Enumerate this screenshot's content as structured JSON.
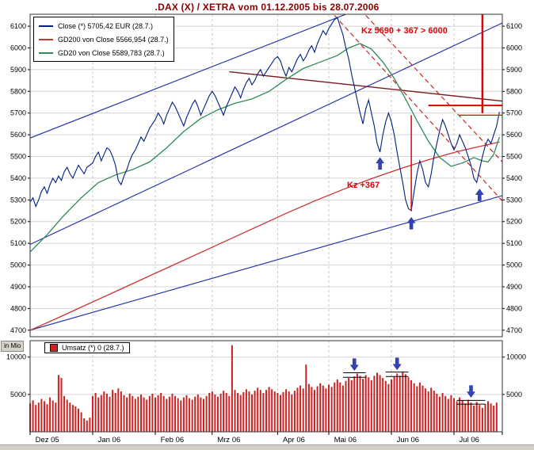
{
  "title": ".DAX (X) / XETRA vom 01.12.2005 bis 28.07.2006",
  "legend": {
    "items": [
      {
        "name": "close",
        "label": "Close (*) 5705,42 EUR (28.7.)",
        "color": "#002080"
      },
      {
        "name": "gd200",
        "label": "GD200 von Close 5566,954 (28.7.)",
        "color": "#cc3333"
      },
      {
        "name": "gd20",
        "label": "GD20 von Close 5589,783 (28.7.)",
        "color": "#2e8b57"
      }
    ]
  },
  "volume_legend": {
    "label": "Umsatz (*) 0 (28.7.)",
    "color": "#cc2222"
  },
  "in_mio_label": "in Mio",
  "annotations": {
    "target": "Kz 5690 + 367 > 6000",
    "measure": "Kz +367"
  },
  "chart_data": {
    "type": "line",
    "title": ".DAX (X) / XETRA vom 01.12.2005 bis 28.07.2006",
    "x_unit": "trading day index from 01.12.2005 to 28.07.2006",
    "x_range": [
      0,
      166
    ],
    "y_range": [
      4670,
      6155
    ],
    "y_ticks": [
      4700,
      4800,
      4900,
      5000,
      5100,
      5200,
      5300,
      5400,
      5500,
      5600,
      5700,
      5800,
      5900,
      6000,
      6100
    ],
    "grid": true,
    "months": [
      {
        "label": "Dez 05",
        "day": 1
      },
      {
        "label": "Jan 06",
        "day": 23
      },
      {
        "label": "Feb 06",
        "day": 45
      },
      {
        "label": "Mrz 06",
        "day": 65
      },
      {
        "label": "Apr 06",
        "day": 88
      },
      {
        "label": "Mai 06",
        "day": 106
      },
      {
        "label": "Jun 06",
        "day": 128
      },
      {
        "label": "Jul 06",
        "day": 150
      }
    ],
    "month_boundaries": [
      22,
      44,
      64,
      87,
      105,
      127,
      149
    ],
    "series": [
      {
        "name": "Close",
        "color": "#002080",
        "last_value": 5705.42,
        "values": [
          5290,
          5310,
          5270,
          5300,
          5340,
          5360,
          5330,
          5370,
          5400,
          5380,
          5410,
          5390,
          5430,
          5450,
          5420,
          5400,
          5430,
          5460,
          5440,
          5420,
          5450,
          5460,
          5470,
          5500,
          5520,
          5480,
          5510,
          5540,
          5530,
          5500,
          5460,
          5390,
          5370,
          5410,
          5440,
          5480,
          5510,
          5530,
          5560,
          5590,
          5570,
          5600,
          5630,
          5650,
          5670,
          5700,
          5680,
          5650,
          5690,
          5720,
          5750,
          5730,
          5700,
          5670,
          5640,
          5680,
          5710,
          5740,
          5760,
          5730,
          5690,
          5720,
          5750,
          5780,
          5800,
          5780,
          5750,
          5720,
          5690,
          5730,
          5760,
          5790,
          5820,
          5800,
          5770,
          5810,
          5840,
          5860,
          5830,
          5850,
          5880,
          5900,
          5870,
          5890,
          5910,
          5930,
          5950,
          5960,
          5940,
          5900,
          5870,
          5910,
          5890,
          5920,
          5950,
          5970,
          5940,
          5960,
          5990,
          6010,
          5980,
          6020,
          6050,
          6080,
          6060,
          6090,
          6110,
          6130,
          6140,
          6100,
          6060,
          6000,
          5950,
          5880,
          5820,
          5760,
          5700,
          5650,
          5720,
          5760,
          5700,
          5640,
          5560,
          5520,
          5600,
          5660,
          5700,
          5660,
          5600,
          5520,
          5450,
          5380,
          5300,
          5260,
          5250,
          5340,
          5420,
          5480,
          5440,
          5380,
          5360,
          5420,
          5500,
          5560,
          5620,
          5670,
          5640,
          5600,
          5560,
          5530,
          5560,
          5600,
          5570,
          5540,
          5500,
          5460,
          5400,
          5380,
          5440,
          5500,
          5550,
          5580,
          5560,
          5600,
          5640,
          5705.42
        ]
      },
      {
        "name": "GD200 von Close",
        "color": "#cc3333",
        "last_value": 5566.954,
        "points": [
          [
            0,
            4700
          ],
          [
            10,
            4758
          ],
          [
            20,
            4818
          ],
          [
            30,
            4878
          ],
          [
            40,
            4938
          ],
          [
            50,
            4998
          ],
          [
            60,
            5058
          ],
          [
            70,
            5118
          ],
          [
            80,
            5178
          ],
          [
            90,
            5238
          ],
          [
            100,
            5295
          ],
          [
            110,
            5348
          ],
          [
            120,
            5398
          ],
          [
            130,
            5443
          ],
          [
            140,
            5485
          ],
          [
            150,
            5522
          ],
          [
            158,
            5546
          ],
          [
            165,
            5567
          ]
        ]
      },
      {
        "name": "GD20 von Close",
        "color": "#2e8b57",
        "last_value": 5589.783,
        "points": [
          [
            0,
            5060
          ],
          [
            6,
            5140
          ],
          [
            12,
            5230
          ],
          [
            18,
            5310
          ],
          [
            24,
            5380
          ],
          [
            30,
            5415
          ],
          [
            36,
            5440
          ],
          [
            42,
            5475
          ],
          [
            48,
            5540
          ],
          [
            54,
            5615
          ],
          [
            60,
            5675
          ],
          [
            66,
            5715
          ],
          [
            72,
            5745
          ],
          [
            78,
            5765
          ],
          [
            84,
            5800
          ],
          [
            90,
            5855
          ],
          [
            96,
            5905
          ],
          [
            102,
            5935
          ],
          [
            108,
            5965
          ],
          [
            112,
            6000
          ],
          [
            116,
            6020
          ],
          [
            120,
            5995
          ],
          [
            124,
            5935
          ],
          [
            128,
            5860
          ],
          [
            132,
            5765
          ],
          [
            136,
            5665
          ],
          [
            140,
            5570
          ],
          [
            144,
            5495
          ],
          [
            148,
            5455
          ],
          [
            152,
            5470
          ],
          [
            156,
            5495
          ],
          [
            159,
            5480
          ],
          [
            161,
            5475
          ],
          [
            163,
            5510
          ],
          [
            165,
            5590
          ]
        ]
      }
    ],
    "trendlines": [
      {
        "name": "support-uptrend",
        "points": [
          [
            0,
            4700
          ],
          [
            166,
            5320
          ]
        ],
        "color": "#2838aa",
        "width": 1.2
      },
      {
        "name": "channel-uptrend",
        "points": [
          [
            0,
            5095
          ],
          [
            166,
            6115
          ]
        ],
        "color": "#2838aa",
        "width": 1.2
      },
      {
        "name": "steep-uptrend",
        "points": [
          [
            0,
            5585
          ],
          [
            112,
            6160
          ]
        ],
        "color": "#2838aa",
        "width": 1.2
      },
      {
        "name": "resistance-maroon",
        "points": [
          [
            70,
            5890
          ],
          [
            166,
            5755
          ]
        ],
        "color": "#7a1a1a",
        "width": 1.4
      },
      {
        "name": "downtrend-dashed-1",
        "points": [
          [
            107,
            6150
          ],
          [
            166,
            5295
          ]
        ],
        "color": "#cc2222",
        "width": 1.2,
        "dash": "6,4"
      },
      {
        "name": "downtrend-dashed-2",
        "points": [
          [
            118,
            6150
          ],
          [
            166,
            5475
          ]
        ],
        "color": "#cc2222",
        "width": 1.2,
        "dash": "6,4"
      }
    ],
    "annotation_lines": [
      {
        "name": "measure-vline",
        "points": [
          [
            134,
            5250
          ],
          [
            134,
            5690
          ]
        ],
        "color": "#e60000",
        "width": 1.5
      },
      {
        "name": "target-vline",
        "points": [
          [
            159,
            5700
          ],
          [
            159,
            6155
          ]
        ],
        "color": "#e60000",
        "width": 2.5
      },
      {
        "name": "target-hline-5735",
        "points": [
          [
            140,
            5735
          ],
          [
            166,
            5735
          ]
        ],
        "color": "#e60000",
        "width": 2
      },
      {
        "name": "target-hline-5690",
        "points": [
          [
            151,
            5690
          ],
          [
            166,
            5690
          ]
        ],
        "color": "#e60000",
        "width": 1.2
      }
    ],
    "arrows_price": [
      {
        "day": 123,
        "value": 5495,
        "dir": "up"
      },
      {
        "day": 134,
        "value": 5220,
        "dir": "up"
      },
      {
        "day": 158,
        "value": 5350,
        "dir": "up"
      }
    ],
    "arrow_color": "#3344bb",
    "volume": {
      "name": "Umsatz",
      "unit": "Mio",
      "color": "#cc2222",
      "y_range": [
        0,
        12200
      ],
      "y_ticks": [
        5000,
        10000
      ],
      "values": [
        3800,
        4200,
        3600,
        3900,
        4400,
        4100,
        3700,
        4600,
        4200,
        3900,
        7600,
        7200,
        4800,
        4300,
        3900,
        3600,
        3400,
        3100,
        2600,
        1800,
        1500,
        1900,
        4800,
        5200,
        4600,
        4900,
        5400,
        5100,
        4700,
        5600,
        5200,
        5800,
        5400,
        4900,
        4600,
        5100,
        4800,
        4400,
        4700,
        5000,
        4600,
        4300,
        4800,
        5100,
        4600,
        4900,
        5200,
        4800,
        4400,
        4700,
        5100,
        4800,
        4500,
        4200,
        4600,
        4900,
        4500,
        4300,
        4700,
        5000,
        4600,
        4400,
        4800,
        5200,
        5400,
        5000,
        4700,
        5100,
        5500,
        5200,
        4800,
        11600,
        5600,
        5200,
        4900,
        5300,
        5700,
        5400,
        5000,
        5500,
        5900,
        5600,
        5200,
        5600,
        6000,
        5700,
        5400,
        5200,
        4900,
        5300,
        5700,
        5400,
        5000,
        5500,
        5900,
        6200,
        5800,
        9000,
        6400,
        6000,
        5600,
        6100,
        6500,
        6200,
        5800,
        6300,
        6000,
        6600,
        7000,
        6600,
        6200,
        6800,
        7200,
        6900,
        7400,
        7800,
        7500,
        7100,
        7600,
        7300,
        6900,
        7500,
        7900,
        7600,
        7200,
        6800,
        6400,
        7000,
        7400,
        7800,
        7500,
        8000,
        7700,
        7300,
        6900,
        6500,
        6100,
        6600,
        6200,
        5800,
        5400,
        5900,
        5500,
        5100,
        4700,
        5200,
        4800,
        4400,
        4900,
        4500,
        4100,
        4600,
        4200,
        3800,
        4300,
        3900,
        3500,
        4000,
        3600,
        3200,
        3700,
        4100,
        3800,
        3500,
        3900,
        0
      ],
      "arrows": [
        {
          "day": 114,
          "value": 8200,
          "dir": "down"
        },
        {
          "day": 129,
          "value": 8300,
          "dir": "down"
        },
        {
          "day": 155,
          "value": 4600,
          "dir": "down"
        }
      ],
      "marks": [
        {
          "d0": 110,
          "d1": 118,
          "value": 7900
        },
        {
          "d0": 110,
          "d1": 118,
          "value": 7300
        },
        {
          "d0": 125,
          "d1": 133,
          "value": 8000
        },
        {
          "d0": 125,
          "d1": 133,
          "value": 7400
        },
        {
          "d0": 150,
          "d1": 160,
          "value": 4200
        },
        {
          "d0": 150,
          "d1": 160,
          "value": 3700
        }
      ]
    }
  }
}
